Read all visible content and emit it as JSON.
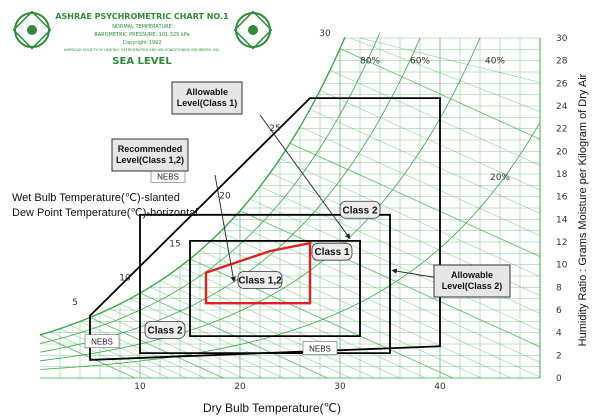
{
  "header": {
    "title": "ASHRAE PSYCHROMETRIC CHART NO.1",
    "line2": "NORMAL TEMPERATURE",
    "line3": "BAROMETRIC PRESSURE: 101.325 kPa",
    "line4": "Copyright 1992",
    "line5": "AMERICAN SOCIETY OF HEATING, REFRIGERATING AND AIR-CONDITIONING ENGINEERS, INC.",
    "subtitle": "SEA LEVEL"
  },
  "legend_text": {
    "wet_bulb": "Wet Bulb Temperature(℃)-slanted",
    "dew_point": "Dew Point Temperature(℃)-horizontal"
  },
  "colors": {
    "grid": "#3aa84a",
    "recommended": "#e02020",
    "zones": "#000000",
    "callout_fill": "#e6e6e6"
  },
  "icons": {
    "logo_left": "ashrae-logo-icon",
    "logo_right": "ashrae-logo-icon"
  },
  "chart_data": {
    "type": "psychrometric",
    "xlabel": "Dry Bulb Temperature(℃)",
    "ylabel": "Humidity Ratio : Grams Moisture per Kilogram of Dry Air",
    "xticks": [
      "10",
      "20",
      "30",
      "40"
    ],
    "yticks": [
      "0",
      "2",
      "4",
      "6",
      "8",
      "10",
      "12",
      "14",
      "16",
      "18",
      "20",
      "22",
      "24",
      "26",
      "28",
      "30"
    ],
    "xlim": [
      0,
      50
    ],
    "ylim": [
      0,
      30
    ],
    "wet_bulb_labels": [
      "5",
      "10",
      "15",
      "20",
      "25",
      "30"
    ],
    "rh_labels": [
      "80%",
      "60%",
      "40%",
      "20%"
    ],
    "zones": [
      {
        "name": "Recommended Level(Class 1,2)",
        "label": "Class 1,2",
        "color": "red",
        "points": [
          [
            16.6,
            9.3
          ],
          [
            23.0,
            11.2
          ],
          [
            27.0,
            11.9
          ],
          [
            27.0,
            6.6
          ],
          [
            16.6,
            6.6
          ]
        ]
      },
      {
        "name": "Class 1",
        "label": "Class 1",
        "points": [
          [
            15.0,
            3.7
          ],
          [
            15.0,
            12.1
          ],
          [
            32.0,
            12.1
          ],
          [
            32.0,
            3.7
          ]
        ]
      },
      {
        "name": "Class 2",
        "label": "Class 2",
        "points": [
          [
            10.0,
            2.2
          ],
          [
            10.0,
            14.4
          ],
          [
            35.0,
            14.4
          ],
          [
            35.0,
            2.2
          ]
        ]
      },
      {
        "name": "Allowable NEBS",
        "label": "NEBS",
        "points": [
          [
            5.0,
            1.6
          ],
          [
            5.0,
            5.5
          ],
          [
            27.0,
            24.7
          ],
          [
            40.0,
            24.7
          ],
          [
            40.0,
            2.8
          ]
        ]
      }
    ],
    "nebs_labels": [
      "NEBS",
      "NEBS",
      "NEBS"
    ],
    "callouts": [
      {
        "text": [
          "Allowable",
          "Level(Class 1)"
        ],
        "target": "Class 1"
      },
      {
        "text": [
          "Recommended",
          "Level(Class 1,2)"
        ],
        "target": "Class 1,2"
      },
      {
        "text": [
          "Allowable",
          "Level(Class 2)"
        ],
        "target": "Class 2"
      }
    ],
    "grid": true
  }
}
